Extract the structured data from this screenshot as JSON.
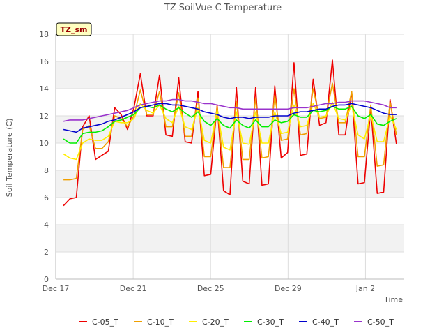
{
  "chart_data": {
    "type": "line",
    "title": "TZ SoilVue C Temperature",
    "xlabel": "Time",
    "ylabel": "Soil Temperature (C)",
    "station_label": "TZ_sm",
    "ylim": [
      0,
      18
    ],
    "yticks": [
      0,
      2,
      4,
      6,
      8,
      10,
      12,
      14,
      16,
      18
    ],
    "xlim": [
      0,
      18
    ],
    "xticks": [
      {
        "x": 0,
        "label": "Dec 17"
      },
      {
        "x": 4,
        "label": "Dec 21"
      },
      {
        "x": 8,
        "label": "Dec 25"
      },
      {
        "x": 12,
        "label": "Dec 29"
      },
      {
        "x": 16,
        "label": "Jan 2"
      }
    ],
    "x_start": 0.4,
    "x_end": 17.6,
    "grid": true,
    "legend_position": "bottom",
    "series": [
      {
        "name": "C-05_T",
        "color": "#ee0000",
        "y": [
          5.4,
          5.9,
          6.0,
          11.2,
          12.0,
          8.8,
          9.1,
          9.4,
          12.6,
          12.1,
          11.0,
          12.6,
          15.1,
          12.0,
          12.0,
          15.0,
          10.6,
          10.5,
          14.8,
          10.1,
          10.0,
          13.8,
          7.6,
          7.7,
          12.8,
          6.5,
          6.2,
          14.1,
          7.2,
          7.0,
          14.1,
          6.9,
          7.0,
          14.2,
          8.9,
          9.3,
          15.9,
          9.1,
          9.2,
          14.7,
          11.3,
          11.5,
          16.1,
          10.6,
          10.6,
          13.8,
          7.0,
          7.1,
          12.6,
          6.3,
          6.4,
          13.2,
          9.9
        ]
      },
      {
        "name": "C-10_T",
        "color": "#f0a000",
        "y": [
          7.3,
          7.3,
          7.4,
          11.0,
          11.3,
          9.6,
          9.6,
          10.1,
          12.0,
          11.8,
          11.2,
          12.0,
          13.9,
          12.1,
          12.1,
          13.8,
          11.2,
          11.2,
          13.7,
          10.5,
          10.5,
          13.3,
          9.0,
          9.0,
          12.7,
          8.2,
          8.2,
          13.1,
          8.8,
          8.8,
          13.3,
          8.9,
          9.0,
          13.5,
          10.2,
          10.3,
          14.0,
          10.6,
          10.7,
          14.0,
          11.8,
          11.9,
          14.4,
          11.5,
          11.5,
          13.8,
          9.0,
          9.0,
          12.8,
          8.3,
          8.4,
          13.0,
          10.6
        ]
      },
      {
        "name": "C-20_T",
        "color": "#ffee00",
        "y": [
          9.2,
          8.9,
          8.8,
          10.0,
          10.3,
          10.2,
          10.2,
          10.5,
          11.6,
          11.5,
          11.5,
          11.8,
          12.9,
          12.4,
          12.2,
          12.8,
          11.8,
          11.5,
          12.7,
          11.2,
          11.0,
          12.6,
          10.2,
          10.0,
          12.4,
          9.7,
          9.5,
          12.3,
          10.0,
          9.9,
          12.3,
          10.0,
          10.0,
          12.3,
          10.7,
          10.8,
          12.8,
          11.2,
          11.3,
          12.9,
          11.9,
          12.0,
          13.0,
          11.8,
          11.7,
          12.8,
          10.6,
          10.3,
          12.1,
          10.1,
          10.1,
          12.0,
          11.0
        ]
      },
      {
        "name": "C-30_T",
        "color": "#00ee00",
        "y": [
          10.3,
          10.0,
          10.0,
          10.7,
          10.8,
          10.8,
          10.9,
          11.2,
          11.6,
          11.7,
          11.9,
          12.1,
          12.6,
          12.7,
          12.6,
          12.8,
          12.5,
          12.3,
          12.6,
          12.2,
          11.9,
          12.3,
          11.6,
          11.3,
          11.8,
          11.3,
          11.1,
          11.7,
          11.3,
          11.1,
          11.7,
          11.2,
          11.2,
          11.7,
          11.5,
          11.6,
          12.1,
          11.9,
          11.9,
          12.4,
          12.3,
          12.4,
          12.7,
          12.5,
          12.5,
          12.7,
          12.0,
          11.8,
          12.1,
          11.4,
          11.3,
          11.6,
          11.8
        ]
      },
      {
        "name": "C-40_T",
        "color": "#0000cc",
        "y": [
          11.0,
          10.9,
          10.8,
          11.1,
          11.2,
          11.3,
          11.4,
          11.6,
          11.7,
          11.9,
          12.1,
          12.3,
          12.6,
          12.7,
          12.8,
          12.9,
          12.9,
          12.8,
          12.8,
          12.7,
          12.6,
          12.5,
          12.3,
          12.2,
          12.1,
          11.9,
          11.8,
          11.9,
          11.9,
          11.8,
          11.9,
          11.9,
          11.9,
          12.0,
          12.0,
          12.0,
          12.2,
          12.3,
          12.3,
          12.4,
          12.5,
          12.5,
          12.7,
          12.8,
          12.8,
          12.9,
          12.8,
          12.7,
          12.6,
          12.4,
          12.2,
          12.1,
          12.1
        ]
      },
      {
        "name": "C-50_T",
        "color": "#9933cc",
        "y": [
          11.6,
          11.7,
          11.7,
          11.7,
          11.8,
          11.9,
          12.0,
          12.1,
          12.2,
          12.3,
          12.4,
          12.6,
          12.8,
          12.9,
          13.0,
          13.1,
          13.1,
          13.2,
          13.2,
          13.1,
          13.1,
          13.0,
          12.9,
          12.9,
          12.8,
          12.7,
          12.6,
          12.6,
          12.5,
          12.5,
          12.5,
          12.5,
          12.5,
          12.5,
          12.5,
          12.5,
          12.6,
          12.6,
          12.6,
          12.7,
          12.8,
          12.9,
          12.9,
          13.0,
          13.0,
          13.1,
          13.1,
          13.1,
          13.0,
          12.9,
          12.8,
          12.6,
          12.6
        ]
      }
    ]
  }
}
